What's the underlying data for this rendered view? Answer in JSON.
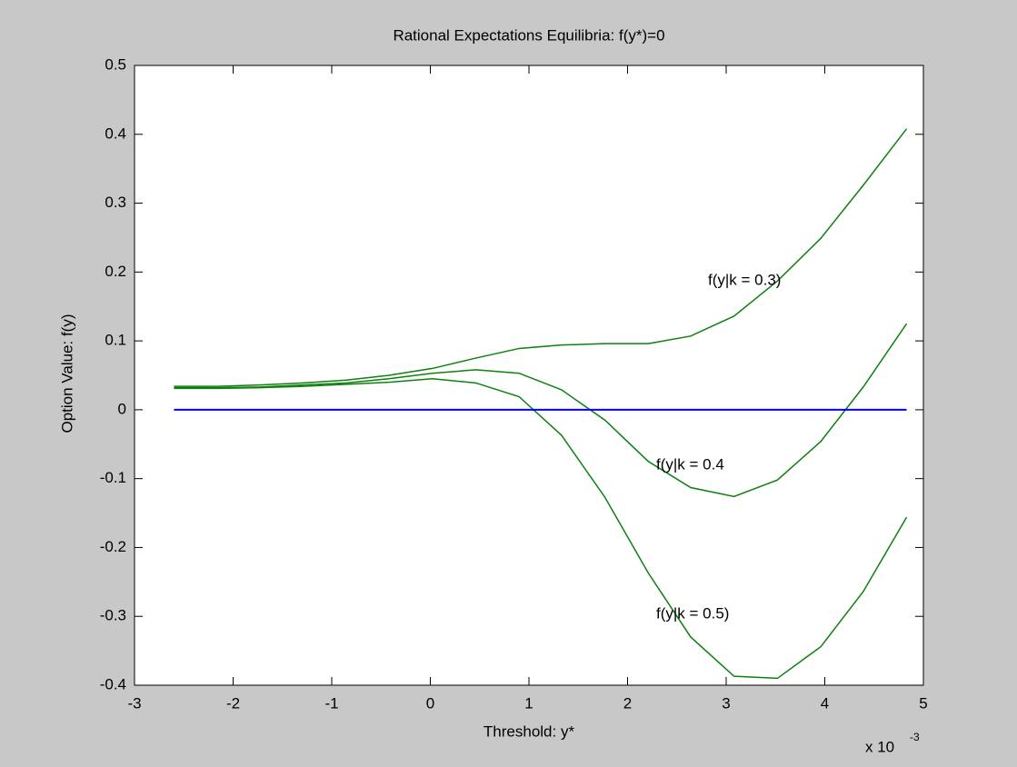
{
  "chart_data": {
    "type": "line",
    "title": "Rational Expectations Equilibria: f(y*)=0",
    "x_label": "Threshold: y*",
    "y_label": "Option Value: f(y)",
    "x_multiplier": {
      "base": "x 10",
      "exponent": "-3"
    },
    "x": [
      -2.6,
      -2.16,
      -1.73,
      -1.29,
      -0.85,
      -0.42,
      0.02,
      0.46,
      0.9,
      1.33,
      1.77,
      2.21,
      2.64,
      3.08,
      3.52,
      3.96,
      4.39,
      4.83
    ],
    "series": [
      {
        "color": "#0f800f",
        "values": [
          0.034,
          0.034,
          0.036,
          0.039,
          0.043,
          0.05,
          0.06,
          0.075,
          0.089,
          0.094,
          0.096,
          0.096,
          0.107,
          0.136,
          0.187,
          0.249,
          0.326,
          0.408
        ]
      },
      {
        "color": "#0f800f",
        "values": [
          0.032,
          0.032,
          0.033,
          0.036,
          0.039,
          0.045,
          0.053,
          0.058,
          0.053,
          0.029,
          -0.015,
          -0.075,
          -0.113,
          -0.126,
          -0.102,
          -0.046,
          0.033,
          0.125
        ]
      },
      {
        "color": "#0f800f",
        "values": [
          0.031,
          0.031,
          0.032,
          0.034,
          0.037,
          0.04,
          0.045,
          0.039,
          0.019,
          -0.037,
          -0.127,
          -0.237,
          -0.33,
          -0.387,
          -0.39,
          -0.344,
          -0.264,
          -0.156
        ]
      },
      {
        "color": "#0000ff",
        "values": [
          0,
          0,
          0,
          0,
          0,
          0,
          0,
          0,
          0,
          0,
          0,
          0,
          0,
          0,
          0,
          0,
          0,
          0
        ]
      }
    ],
    "annotations": [
      "f(y|k = 0.3)",
      "f(y|k = 0.4",
      "f(y|k = 0.5)"
    ],
    "xlim": [
      -3,
      5
    ],
    "xticks": [
      -3,
      -2,
      -1,
      0,
      1,
      2,
      3,
      4,
      5
    ],
    "ylim": [
      -0.4,
      0.5
    ],
    "yticks": [
      -0.4,
      -0.3,
      -0.2,
      -0.1,
      0,
      0.1,
      0.2,
      0.3,
      0.4,
      0.5
    ],
    "grid": false
  }
}
